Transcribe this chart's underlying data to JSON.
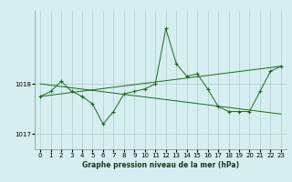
{
  "title": "Graphe pression niveau de la mer (hPa)",
  "bg_color": "#d6eef0",
  "grid_color": "#aaccd0",
  "line_color": "#1a6b1a",
  "xlim": [
    -0.5,
    23.5
  ],
  "ylim": [
    1016.7,
    1019.45
  ],
  "yticks": [
    1017,
    1018
  ],
  "xticks": [
    0,
    1,
    2,
    3,
    4,
    5,
    6,
    7,
    8,
    9,
    10,
    11,
    12,
    13,
    14,
    15,
    16,
    17,
    18,
    19,
    20,
    21,
    22,
    23
  ],
  "series1": [
    1017.75,
    1017.85,
    1018.05,
    1017.85,
    1017.75,
    1017.6,
    1017.2,
    1017.45,
    1017.8,
    1017.85,
    1017.9,
    1018.0,
    1019.1,
    1018.4,
    1018.15,
    1018.2,
    1017.9,
    1017.55,
    1017.45,
    1017.45,
    1017.45,
    1017.85,
    1018.25,
    1018.35
  ],
  "series2_x": [
    0,
    23
  ],
  "series2_y": [
    1018.0,
    1017.4
  ],
  "series3_x": [
    0,
    23
  ],
  "series3_y": [
    1017.75,
    1018.35
  ],
  "xlabel_fontsize": 5.5,
  "tick_fontsize": 5.0
}
